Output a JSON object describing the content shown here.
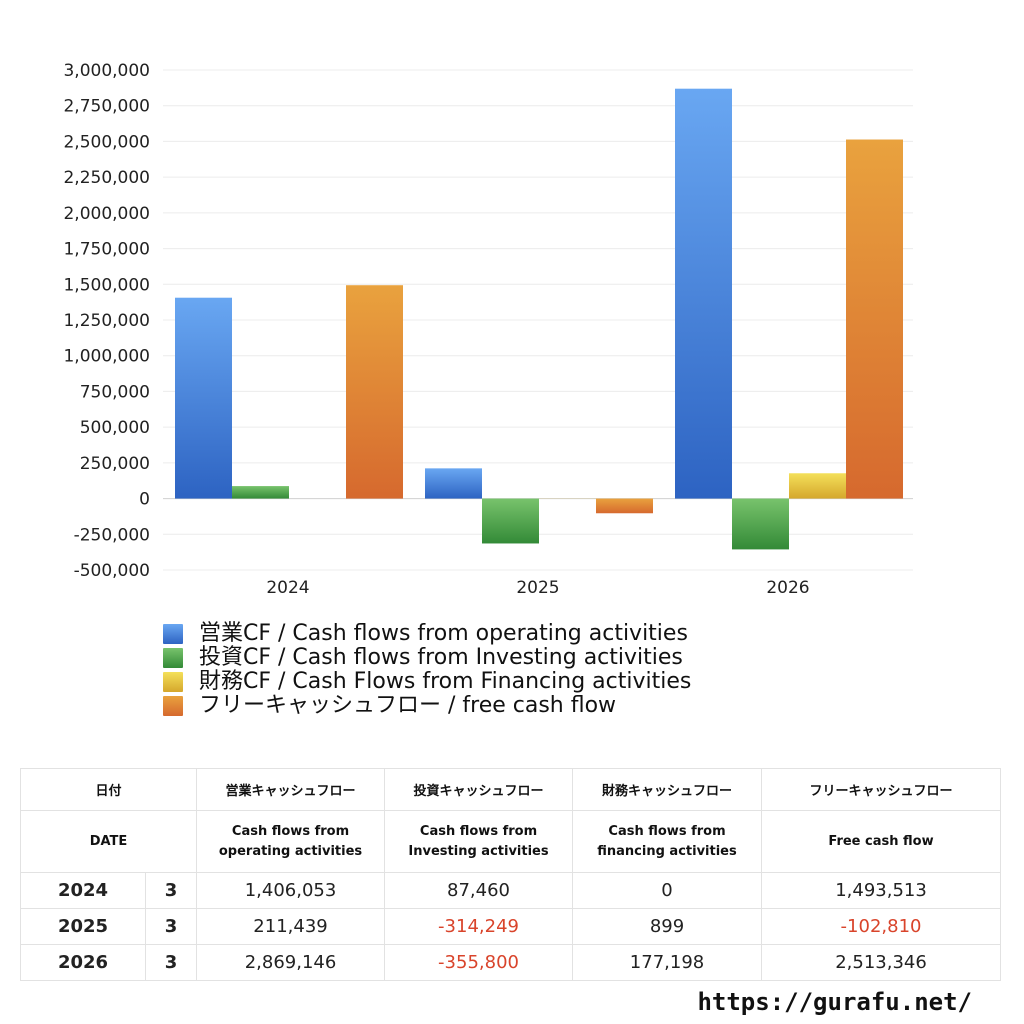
{
  "chart_data": {
    "type": "bar",
    "categories": [
      "2024",
      "2025",
      "2026"
    ],
    "series": [
      {
        "name": "営業CF / Cash flows from operating activities",
        "values": [
          1406053,
          211439,
          2869146
        ],
        "color": "#3d7fe0"
      },
      {
        "name": "投資CF / Cash flows from Investing activities",
        "values": [
          87460,
          -314249,
          -355800
        ],
        "color": "#4ea34a"
      },
      {
        "name": "財務CF / Cash Flows from Financing activities",
        "values": [
          0,
          899,
          177198
        ],
        "color": "#e8c53a"
      },
      {
        "name": "フリーキャッシュフロー / free cash flow",
        "values": [
          1493513,
          -102810,
          2513346
        ],
        "color": "#e0842e"
      }
    ],
    "ylim": [
      -500000,
      3000000
    ],
    "yticks": [
      "3,000,000",
      "2,750,000",
      "2,500,000",
      "2,250,000",
      "2,000,000",
      "1,750,000",
      "1,500,000",
      "1,250,000",
      "1,000,000",
      "750,000",
      "500,000",
      "250,000",
      "0",
      "-250,000",
      "-500,000"
    ],
    "ytick_values": [
      3000000,
      2750000,
      2500000,
      2250000,
      2000000,
      1750000,
      1500000,
      1250000,
      1000000,
      750000,
      500000,
      250000,
      0,
      -250000,
      -500000
    ],
    "grid": true,
    "legend_position": "bottom-left"
  },
  "legend": {
    "items": [
      {
        "label": "営業CF / Cash flows from operating activities",
        "color": "#3d7fe0"
      },
      {
        "label": "投資CF / Cash flows from Investing activities",
        "color": "#4ea34a"
      },
      {
        "label": "財務CF / Cash Flows from Financing activities",
        "color": "#e8c53a"
      },
      {
        "label": "フリーキャッシュフロー / free cash flow",
        "color": "#e0842e"
      }
    ]
  },
  "table": {
    "header_jp": [
      "日付",
      "営業キャッシュフロー",
      "投資キャッシュフロー",
      "財務キャッシュフロー",
      "フリーキャッシュフロー"
    ],
    "header_en": [
      "DATE",
      "Cash flows from operating activities",
      "Cash flows from Investing activities",
      "Cash flows from financing activities",
      "Free cash flow"
    ],
    "rows": [
      {
        "year": "2024",
        "month": "3",
        "operating": "1,406,053",
        "investing": "87,460",
        "financing": "0",
        "free": "1,493,513"
      },
      {
        "year": "2025",
        "month": "3",
        "operating": "211,439",
        "investing": "-314,249",
        "financing": "899",
        "free": "-102,810"
      },
      {
        "year": "2026",
        "month": "3",
        "operating": "2,869,146",
        "investing": "-355,800",
        "financing": "177,198",
        "free": "2,513,346"
      }
    ]
  },
  "site_url": "https://gurafu.net/"
}
